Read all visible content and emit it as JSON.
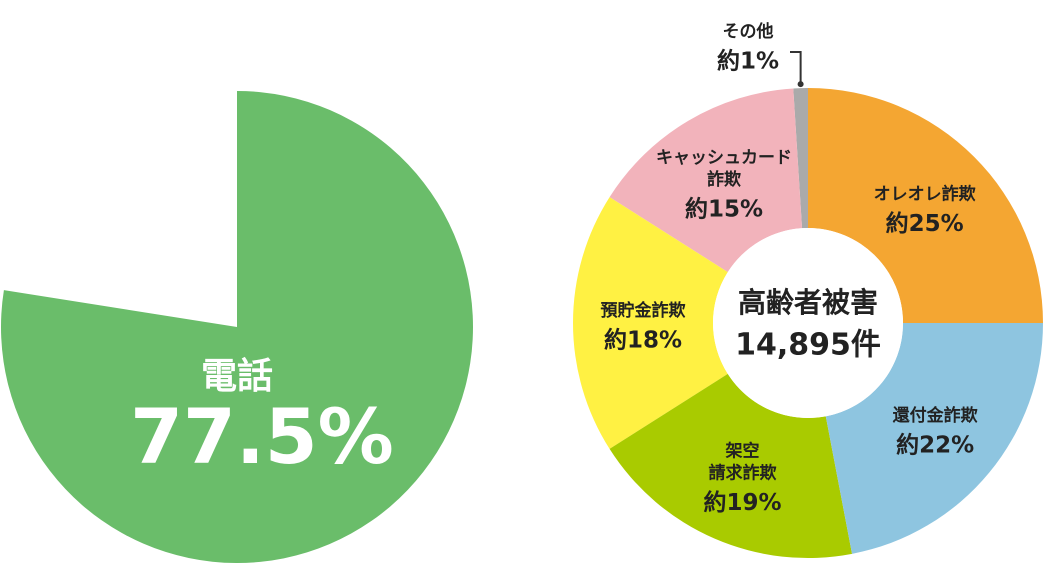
{
  "chart_data": [
    {
      "type": "pie",
      "categories": [
        "電話"
      ],
      "values": [
        77.5
      ],
      "value_labels": [
        "77.5%"
      ],
      "colors": [
        "#6abd6a"
      ]
    },
    {
      "type": "donut",
      "center_title": "高齢者被害",
      "center_total": "14,895件",
      "categories": [
        [
          "オレオレ詐欺"
        ],
        [
          "還付金詐欺"
        ],
        [
          "架空",
          "請求詐欺"
        ],
        [
          "預貯金詐欺"
        ],
        [
          "キャッシュカード",
          "詐欺"
        ],
        [
          "その他"
        ]
      ],
      "values": [
        25,
        22,
        19,
        18,
        15,
        1
      ],
      "value_labels": [
        "約25%",
        "約22%",
        "約19%",
        "約18%",
        "約15%",
        "約1%"
      ],
      "colors": [
        "#f4a632",
        "#8ec5e0",
        "#a9cb00",
        "#fff143",
        "#f2b3bb",
        "#aaaaaa"
      ]
    }
  ]
}
